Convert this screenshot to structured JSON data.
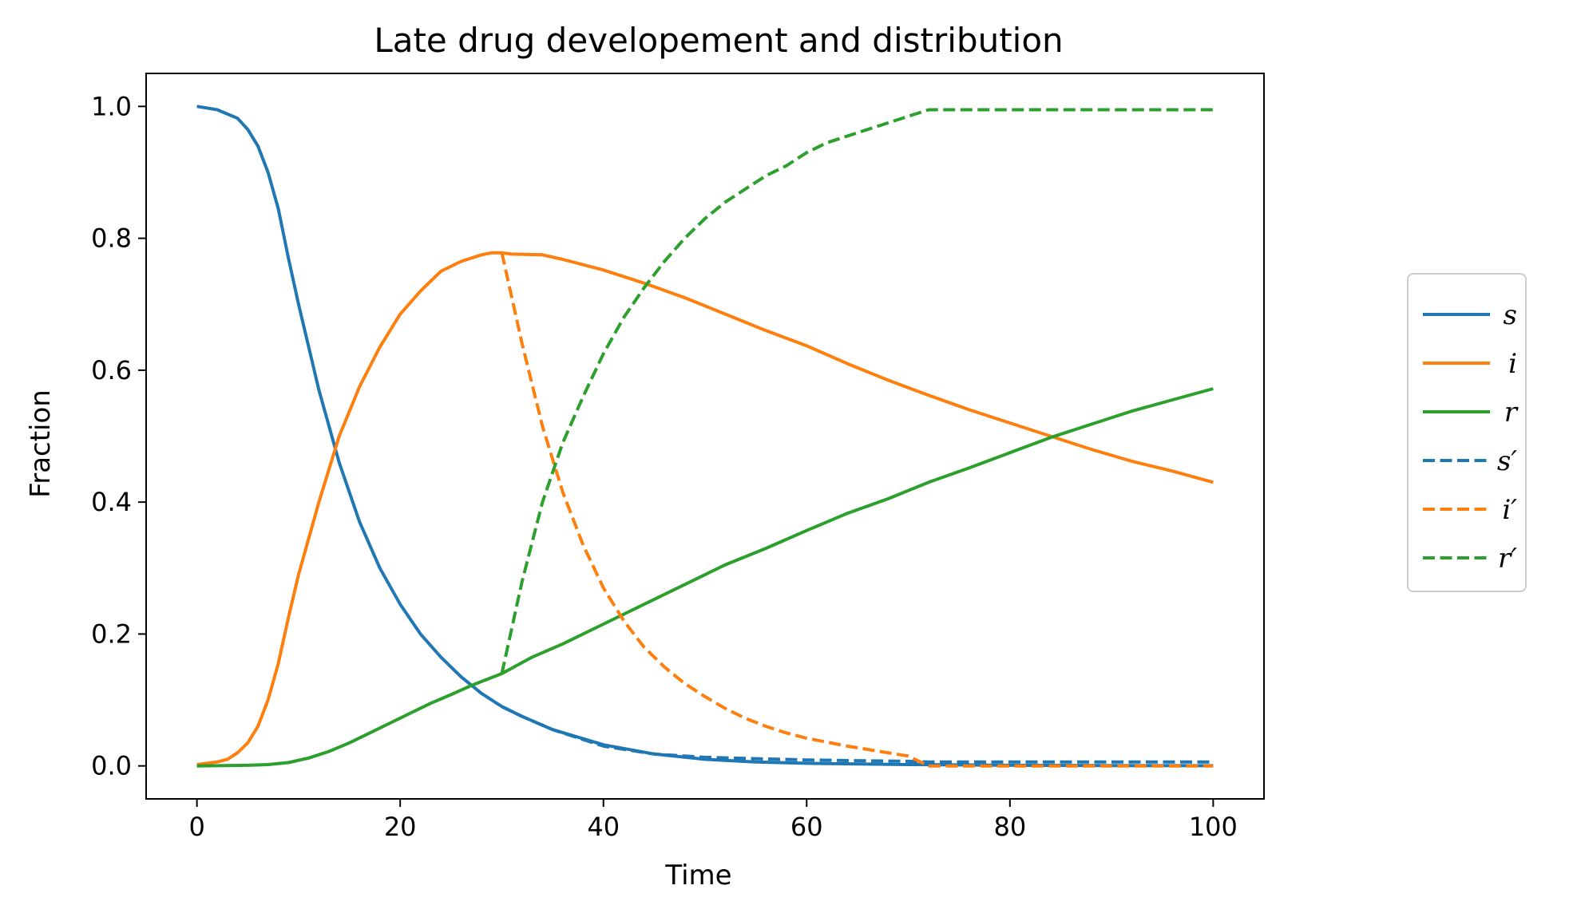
{
  "chart_data": {
    "type": "line",
    "title": "Late drug developement and distribution",
    "xlabel": "Time",
    "ylabel": "Fraction",
    "xlim": [
      -5,
      105
    ],
    "ylim": [
      -0.05,
      1.05
    ],
    "xticks": [
      0,
      20,
      40,
      60,
      80,
      100
    ],
    "xtick_labels": [
      "0",
      "20",
      "40",
      "60",
      "80",
      "100"
    ],
    "yticks": [
      0.0,
      0.2,
      0.4,
      0.6,
      0.8,
      1.0
    ],
    "ytick_labels": [
      "0.0",
      "0.2",
      "0.4",
      "0.6",
      "0.8",
      "1.0"
    ],
    "grid": false,
    "legend_position": "outside-right",
    "series": [
      {
        "name": "s",
        "color": "#1f77b4",
        "style": "solid",
        "x": [
          0,
          2,
          4,
          5,
          6,
          7,
          8,
          9,
          10,
          12,
          14,
          16,
          18,
          20,
          22,
          24,
          26,
          28,
          30,
          32,
          35,
          40,
          45,
          50,
          55,
          60,
          70,
          80,
          90,
          100
        ],
        "y": [
          1.0,
          0.995,
          0.982,
          0.965,
          0.94,
          0.9,
          0.845,
          0.77,
          0.7,
          0.57,
          0.46,
          0.37,
          0.3,
          0.245,
          0.2,
          0.165,
          0.135,
          0.11,
          0.09,
          0.075,
          0.055,
          0.032,
          0.018,
          0.01,
          0.006,
          0.004,
          0.002,
          0.001,
          0.0005,
          0.0003
        ]
      },
      {
        "name": "i",
        "color": "#ff7f0e",
        "style": "solid",
        "x": [
          0,
          2,
          3,
          4,
          5,
          6,
          7,
          8,
          9,
          10,
          12,
          14,
          16,
          18,
          20,
          22,
          24,
          26,
          28,
          29,
          30,
          31,
          34,
          36,
          40,
          44,
          48,
          52,
          56,
          60,
          64,
          68,
          72,
          76,
          80,
          84,
          88,
          92,
          96,
          100
        ],
        "y": [
          0.002,
          0.006,
          0.01,
          0.02,
          0.035,
          0.06,
          0.1,
          0.155,
          0.225,
          0.29,
          0.4,
          0.5,
          0.575,
          0.635,
          0.685,
          0.72,
          0.75,
          0.765,
          0.775,
          0.778,
          0.778,
          0.776,
          0.775,
          0.768,
          0.752,
          0.732,
          0.71,
          0.685,
          0.66,
          0.637,
          0.61,
          0.585,
          0.562,
          0.54,
          0.52,
          0.5,
          0.48,
          0.462,
          0.447,
          0.43
        ]
      },
      {
        "name": "r",
        "color": "#2ca02c",
        "style": "solid",
        "x": [
          0,
          5,
          7,
          9,
          11,
          13,
          15,
          17,
          19,
          21,
          23,
          25,
          27,
          30,
          33,
          36,
          40,
          44,
          48,
          52,
          56,
          60,
          64,
          68,
          72,
          76,
          80,
          84,
          88,
          92,
          96,
          100
        ],
        "y": [
          0.0,
          0.001,
          0.002,
          0.005,
          0.012,
          0.022,
          0.035,
          0.05,
          0.065,
          0.08,
          0.095,
          0.108,
          0.122,
          0.14,
          0.165,
          0.185,
          0.215,
          0.245,
          0.275,
          0.305,
          0.33,
          0.357,
          0.383,
          0.405,
          0.43,
          0.452,
          0.475,
          0.498,
          0.518,
          0.538,
          0.555,
          0.572
        ]
      },
      {
        "name": "s′",
        "color": "#1f77b4",
        "style": "dashed",
        "x": [
          30,
          32,
          35,
          40,
          45,
          50,
          55,
          60,
          65,
          70,
          72,
          80,
          90,
          100
        ],
        "y": [
          0.09,
          0.075,
          0.055,
          0.03,
          0.018,
          0.013,
          0.011,
          0.009,
          0.008,
          0.007,
          0.006,
          0.006,
          0.006,
          0.006
        ]
      },
      {
        "name": "i′",
        "color": "#ff7f0e",
        "style": "dashed",
        "x": [
          30,
          32,
          34,
          36,
          38,
          40,
          42,
          44,
          46,
          48,
          50,
          52,
          54,
          56,
          58,
          60,
          62,
          64,
          66,
          68,
          70,
          72,
          80,
          90,
          100
        ],
        "y": [
          0.778,
          0.64,
          0.515,
          0.415,
          0.335,
          0.27,
          0.22,
          0.18,
          0.15,
          0.125,
          0.105,
          0.087,
          0.072,
          0.06,
          0.05,
          0.042,
          0.036,
          0.03,
          0.025,
          0.02,
          0.015,
          0.0,
          0.0,
          0.0,
          0.0
        ]
      },
      {
        "name": "r′",
        "color": "#2ca02c",
        "style": "dashed",
        "x": [
          30,
          32,
          34,
          36,
          38,
          40,
          42,
          44,
          46,
          48,
          50,
          52,
          54,
          56,
          58,
          60,
          62,
          64,
          66,
          68,
          70,
          71,
          72,
          80,
          90,
          100
        ],
        "y": [
          0.14,
          0.28,
          0.4,
          0.49,
          0.56,
          0.625,
          0.68,
          0.725,
          0.765,
          0.8,
          0.83,
          0.855,
          0.875,
          0.895,
          0.91,
          0.93,
          0.945,
          0.955,
          0.965,
          0.975,
          0.985,
          0.99,
          0.995,
          0.995,
          0.995,
          0.995
        ]
      }
    ]
  }
}
